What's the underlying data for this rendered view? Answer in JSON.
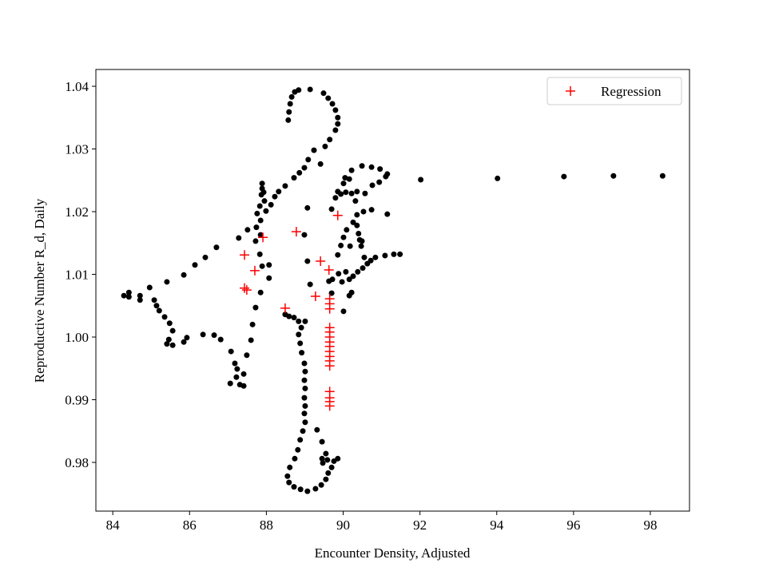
{
  "chart_data": {
    "type": "scatter",
    "xlabel": "Encounter Density, Adjusted",
    "ylabel": "Reproductive Number R_d, Daily",
    "xlim": [
      83.56,
      99.02
    ],
    "ylim": [
      0.97223,
      1.04268
    ],
    "xticks": [
      84,
      86,
      88,
      90,
      92,
      94,
      96,
      98
    ],
    "yticks": [
      0.98,
      0.99,
      {
        "value": 1.0,
        "label": "1.00"
      },
      1.01,
      1.02,
      1.03,
      1.04
    ],
    "legend": "upper right",
    "series": [
      {
        "color": "#000000",
        "marker": "o",
        "x": [
          92.02,
          94.02,
          95.75,
          97.04,
          98.32,
          88.57,
          88.59,
          88.62,
          88.66,
          88.74,
          88.84,
          89.14,
          89.49,
          89.61,
          89.72,
          89.8,
          89.86,
          89.86,
          89.8,
          89.65,
          89.53,
          89.41,
          89.24,
          89.09,
          88.99,
          88.86,
          88.72,
          88.49,
          88.32,
          88.22,
          88.12,
          87.99,
          87.89,
          87.89,
          87.93,
          87.87,
          87.95,
          87.83,
          87.76,
          87.85,
          87.74,
          87.85,
          87.72,
          87.83,
          87.89,
          88.07,
          88.07,
          87.85,
          87.72,
          87.64,
          87.6,
          87.49,
          87.41,
          87.41,
          87.31,
          87.22,
          87.24,
          87.18,
          87.06,
          87.08,
          86.81,
          86.64,
          86.35,
          85.93,
          85.85,
          85.56,
          85.41,
          85.46,
          85.56,
          85.48,
          85.35,
          85.21,
          85.14,
          85.08,
          84.96,
          84.71,
          84.71,
          84.42,
          84.29,
          84.42,
          85.41,
          85.85,
          86.14,
          86.41,
          86.7,
          87.28,
          87.51,
          89.07,
          88.99,
          89.07,
          89.14,
          88.49,
          88.59,
          88.72,
          88.84,
          89.01,
          88.91,
          88.84,
          88.88,
          88.92,
          88.99,
          89.01,
          88.99,
          89.01,
          88.99,
          89.01,
          88.99,
          89.01,
          88.95,
          88.88,
          88.82,
          88.74,
          88.61,
          88.55,
          88.59,
          88.72,
          88.89,
          89.07,
          89.28,
          89.43,
          89.55,
          89.61,
          89.7,
          89.76,
          89.86,
          89.59,
          89.47,
          89.45,
          89.55,
          89.45,
          89.32,
          89.63,
          89.7,
          89.72,
          89.88,
          89.97,
          90.01,
          90.16,
          90.22,
          89.86,
          89.94,
          90.01,
          90.09,
          90.26,
          90.36,
          90.53,
          90.74,
          91.15,
          89.7,
          89.8,
          89.86,
          89.94,
          90.07,
          90.22,
          90.36,
          90.57,
          90.76,
          90.94,
          91.11,
          91.15,
          90.96,
          90.74,
          90.49,
          90.22,
          90.05,
          90.01,
          90.16,
          90.32,
          90.36,
          90.43,
          90.47,
          90.55,
          90.63,
          90.72,
          90.84,
          91.09,
          91.32,
          91.48,
          90.51,
          90.38,
          90.26,
          90.16,
          90.07,
          90.4,
          90.49,
          90.18
        ],
        "values": [
          1.0251,
          1.0253,
          1.0256,
          1.0257,
          1.0257,
          1.0346,
          1.0359,
          1.0372,
          1.0383,
          1.0391,
          1.0394,
          1.0395,
          1.0389,
          1.0381,
          1.0372,
          1.0362,
          1.035,
          1.034,
          1.033,
          1.0315,
          1.0304,
          1.0276,
          1.0298,
          1.0283,
          1.027,
          1.0262,
          1.0254,
          1.0241,
          1.0232,
          1.0224,
          1.0211,
          1.0201,
          1.0245,
          1.0237,
          1.0231,
          1.0227,
          1.0217,
          1.0209,
          1.0197,
          1.0186,
          1.0175,
          1.0163,
          1.0153,
          1.0132,
          1.0113,
          1.0115,
          1.0094,
          1.0071,
          1.0047,
          1.002,
          0.9995,
          0.9971,
          0.9941,
          0.9922,
          0.9924,
          0.9936,
          0.9949,
          0.9958,
          0.9926,
          0.9977,
          0.9996,
          1.0003,
          1.0004,
          0.9999,
          0.9992,
          0.9987,
          0.9989,
          0.9996,
          1.001,
          1.0022,
          1.0032,
          1.0042,
          1.005,
          1.0059,
          1.0079,
          1.0066,
          1.0059,
          1.0071,
          1.0066,
          1.0064,
          1.0088,
          1.0099,
          1.0115,
          1.0127,
          1.0143,
          1.0158,
          1.0171,
          1.0206,
          1.0163,
          1.0121,
          1.0084,
          1.0036,
          1.0033,
          1.0031,
          1.0025,
          1.0025,
          1.0015,
          1.0004,
          0.999,
          0.9975,
          0.9958,
          0.9945,
          0.9931,
          0.9918,
          0.9903,
          0.989,
          0.9878,
          0.9864,
          0.985,
          0.9836,
          0.982,
          0.9806,
          0.9792,
          0.9778,
          0.9768,
          0.9761,
          0.9757,
          0.9754,
          0.9758,
          0.9764,
          0.9773,
          0.9783,
          0.9792,
          0.9802,
          0.9806,
          0.9804,
          0.9799,
          0.9806,
          0.9814,
          0.9833,
          0.9852,
          1.0089,
          1.007,
          1.0092,
          1.0101,
          1.0088,
          1.0041,
          1.0066,
          1.0071,
          1.0131,
          1.0146,
          1.0159,
          1.0171,
          1.0183,
          1.0195,
          1.02,
          1.0203,
          1.0196,
          1.0204,
          1.0222,
          1.0232,
          1.0228,
          1.0231,
          1.0229,
          1.0232,
          1.0229,
          1.0242,
          1.0247,
          1.0256,
          1.026,
          1.0268,
          1.0271,
          1.0273,
          1.0266,
          1.0254,
          1.0245,
          1.0252,
          1.0217,
          1.0178,
          1.0155,
          1.0145,
          1.0127,
          1.0117,
          1.0122,
          1.0127,
          1.013,
          1.0132,
          1.0132,
          1.011,
          1.0104,
          1.0097,
          1.0092,
          1.0104,
          1.0165,
          1.0153,
          1.0145
        ]
      },
      {
        "name": "Regression",
        "color": "#ff0000",
        "marker": "+",
        "x": [
          87.43,
          87.91,
          87.7,
          87.43,
          87.49,
          88.49,
          88.78,
          89.41,
          89.28,
          89.63,
          89.86,
          89.65,
          89.65,
          89.65,
          89.65,
          89.65,
          89.65,
          89.65,
          89.65,
          89.65,
          89.65,
          89.65,
          89.65,
          89.65,
          89.65,
          89.65,
          89.65
        ],
        "values": [
          1.0131,
          1.0159,
          1.0106,
          1.0078,
          1.0075,
          1.0046,
          1.0168,
          1.0121,
          1.0065,
          1.0107,
          1.0194,
          1.0061,
          1.0053,
          1.0045,
          1.0015,
          1.0008,
          1.0,
          0.9992,
          0.9985,
          0.9977,
          0.9969,
          0.9962,
          0.9954,
          0.9913,
          0.9903,
          0.9897,
          0.989
        ]
      }
    ]
  }
}
